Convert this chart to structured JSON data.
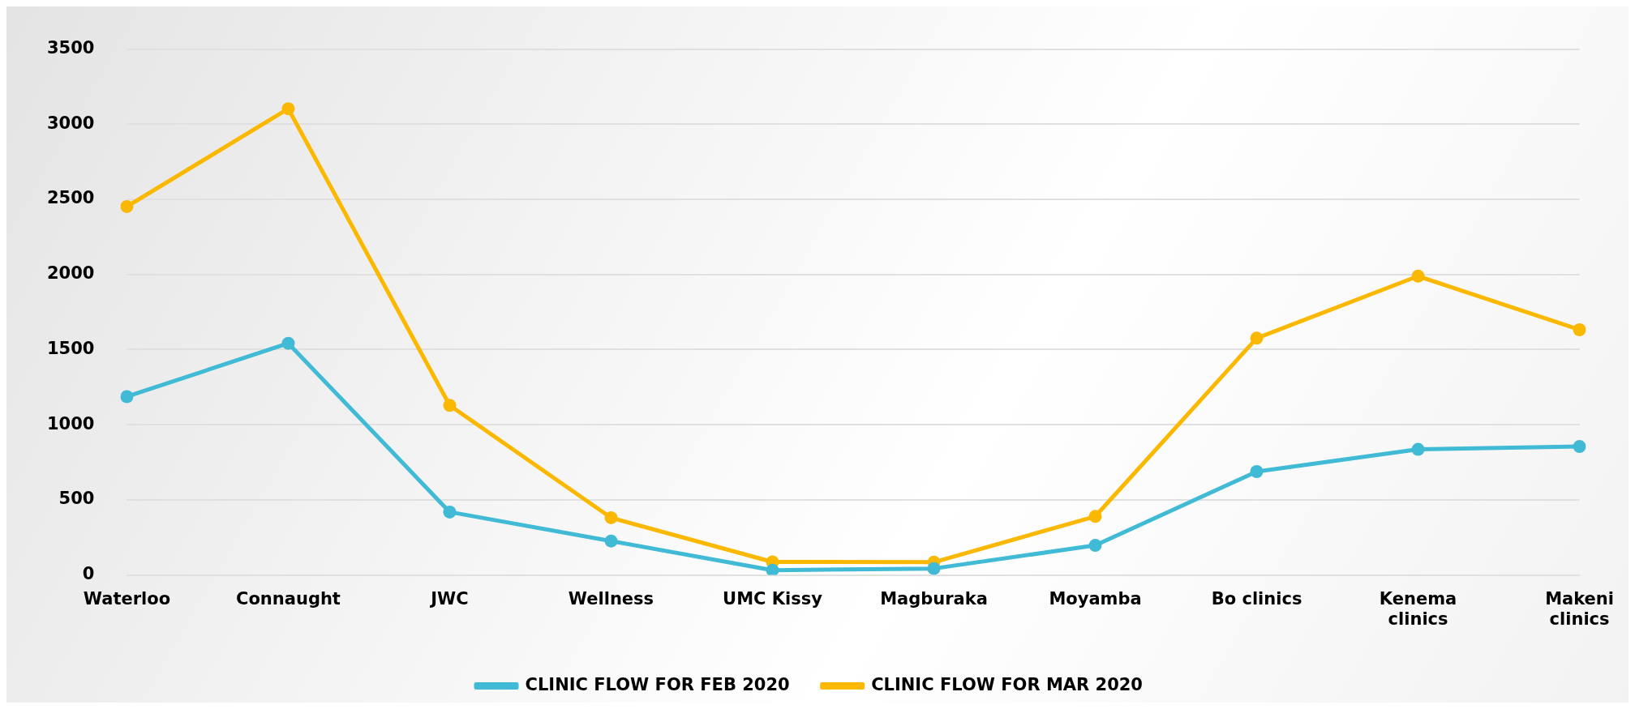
{
  "chart_data": {
    "type": "line",
    "categories": [
      "Waterloo",
      "Connaught",
      "JWC",
      "Wellness",
      "UMC Kissy",
      "Magburaka",
      "Moyamba",
      "Bo clinics",
      "Kenema clinics",
      "Makeni clinics"
    ],
    "series": [
      {
        "name": "CLINIC FLOW FOR FEB 2020",
        "color": "#40bad5",
        "values": [
          1187,
          1542,
          419,
          226,
          32,
          43,
          197,
          688,
          836,
          855
        ]
      },
      {
        "name": "CLINIC FLOW FOR MAR 2020",
        "color": "#fbb800",
        "values": [
          2452,
          3103,
          1129,
          381,
          87,
          85,
          390,
          1576,
          1989,
          1632
        ]
      }
    ],
    "ylim": [
      0,
      3500
    ],
    "yticks": [
      0,
      500,
      1000,
      1500,
      2000,
      2500,
      3000,
      3500
    ],
    "grid": "y",
    "legend": "bottom",
    "marker": "circle",
    "line_style": "solid"
  }
}
